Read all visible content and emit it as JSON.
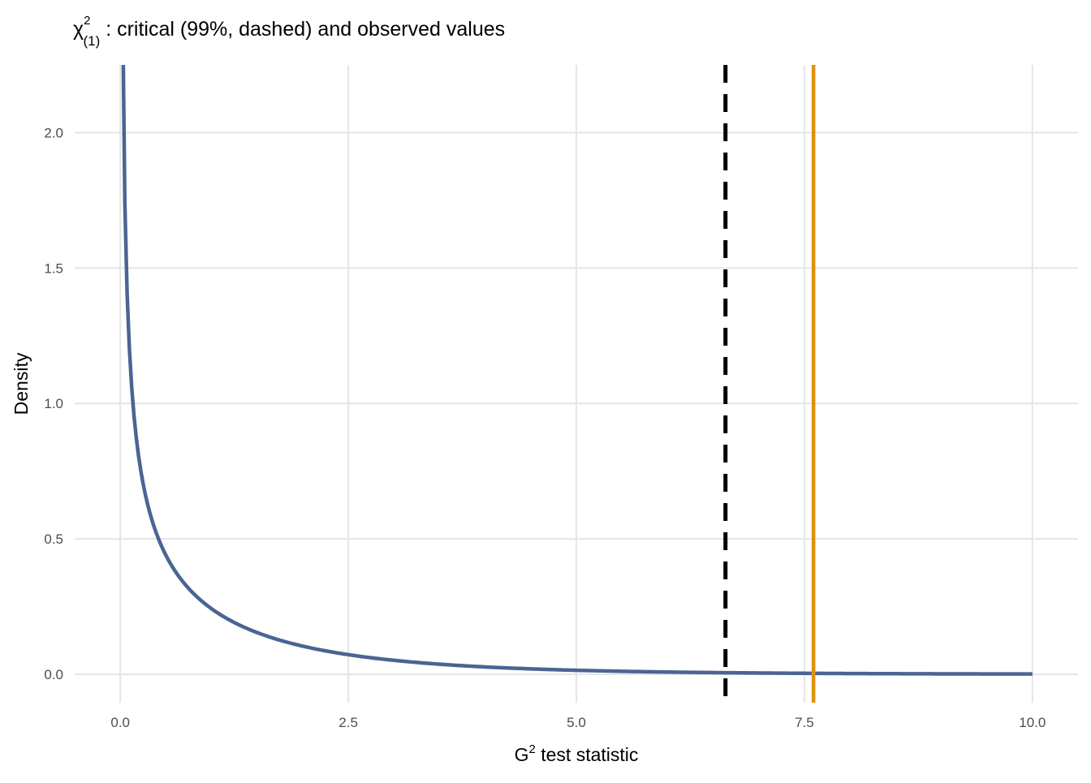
{
  "chart_data": {
    "type": "line",
    "title": {
      "symbol": "χ",
      "superscript": "2",
      "subscript": "(1)",
      "text": " : critical (99%, dashed) and observed values"
    },
    "xlabel": {
      "main": "G",
      "superscript": "2",
      "rest": " test statistic"
    },
    "ylabel": "Density",
    "xlim": [
      -0.5,
      10.5
    ],
    "ylim": [
      -0.105,
      2.25
    ],
    "grid": true,
    "x_ticks": [
      0,
      2.5,
      5,
      7.5,
      10
    ],
    "x_tick_labels": [
      "0.0",
      "2.5",
      "5.0",
      "7.5",
      "10.0"
    ],
    "y_ticks": [
      0,
      0.5,
      1,
      1.5,
      2
    ],
    "y_tick_labels": [
      "0.0",
      "0.5",
      "1.0",
      "1.5",
      "2.0"
    ],
    "series": [
      {
        "name": "chi-square density (df = 1)",
        "distribution": "chisq",
        "df": 1,
        "x_min": 0,
        "x_max": 10,
        "n_points": 401,
        "color": "#4a6593"
      }
    ],
    "vlines": [
      {
        "name": "critical value (99%)",
        "x": 6.635,
        "style": "dashed",
        "color": "#000000"
      },
      {
        "name": "observed value",
        "x": 7.6,
        "style": "solid",
        "color": "#e0900f"
      }
    ],
    "colors": {
      "grid": "#e5e5e5"
    }
  }
}
